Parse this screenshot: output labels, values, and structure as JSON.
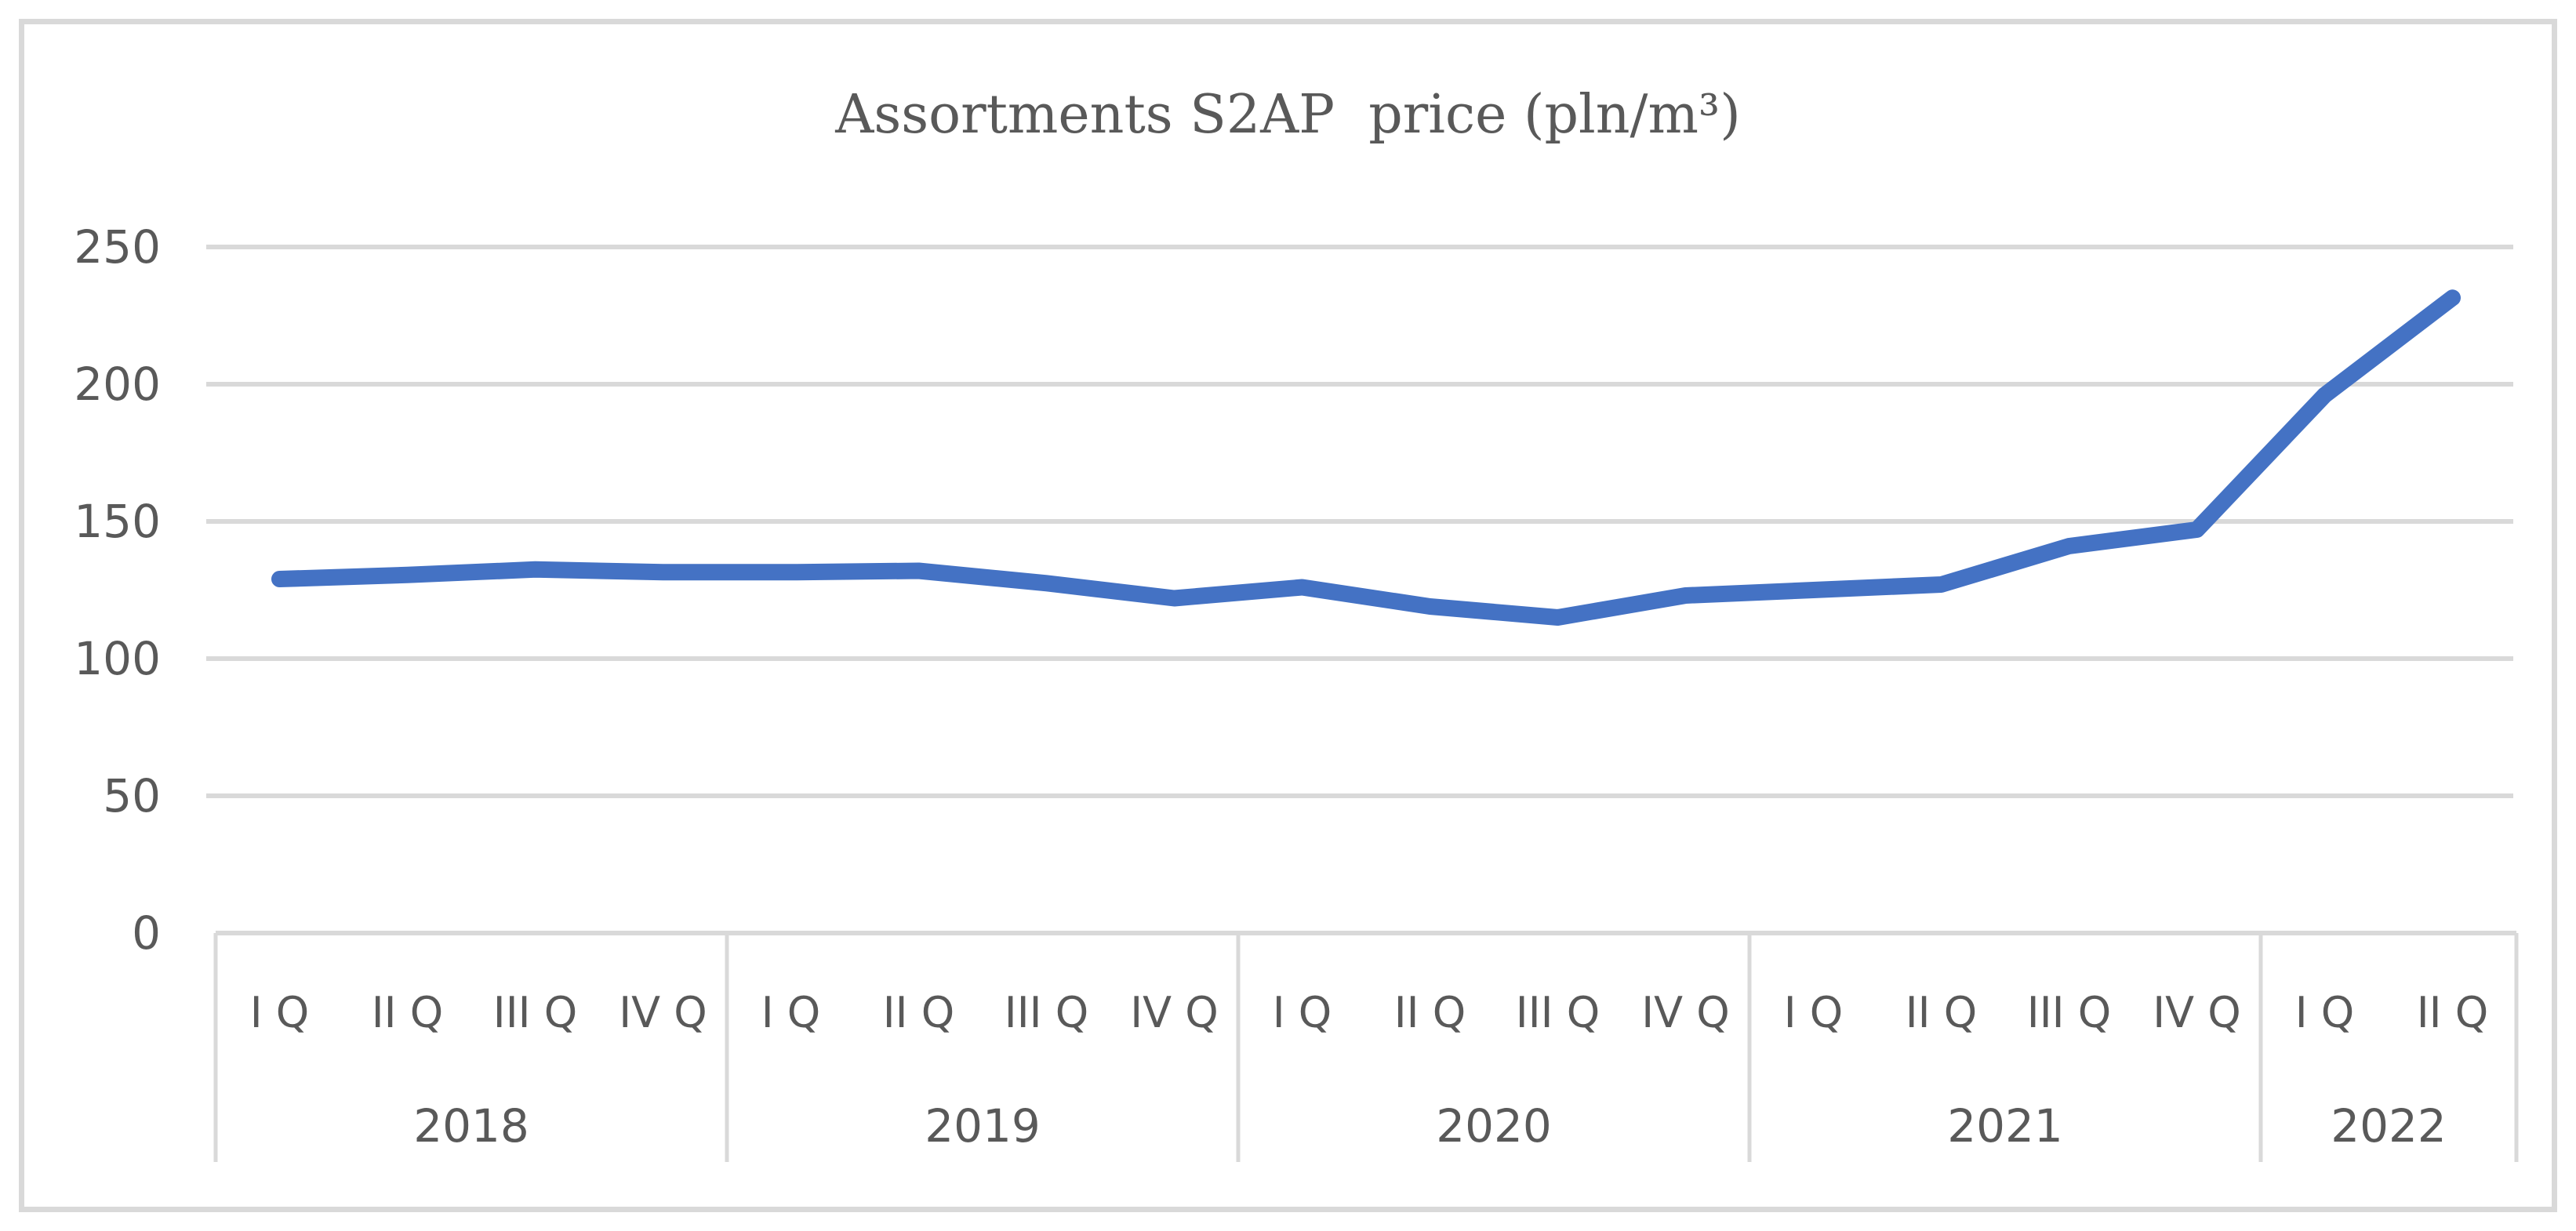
{
  "title": "Assortments S2AP  price (pln/m³)",
  "colors": {
    "series": "#4472C4",
    "grid": "#D9D9D9",
    "border": "#D9D9D9",
    "text": "#595959",
    "background": "#FFFFFF"
  },
  "chart_data": {
    "type": "line",
    "title": "Assortments S2AP  price (pln/m³)",
    "categories": [
      "I Q",
      "II Q",
      "III Q",
      "IV Q",
      "I Q",
      "II Q",
      "III Q",
      "IV Q",
      "I Q",
      "II Q",
      "III Q",
      "IV Q",
      "I Q",
      "II Q",
      "III Q",
      "IV Q",
      "I Q",
      "II Q"
    ],
    "year_groups": [
      {
        "label": "2018",
        "quarters": 4
      },
      {
        "label": "2019",
        "quarters": 4
      },
      {
        "label": "2020",
        "quarters": 4
      },
      {
        "label": "2021",
        "quarters": 4
      },
      {
        "label": "2022",
        "quarters": 2
      }
    ],
    "series": [
      {
        "name": "Assortments S2AP price",
        "values": [
          129,
          130.5,
          132.5,
          131.5,
          131.5,
          132,
          127.5,
          122,
          126,
          119,
          115,
          123,
          125,
          127,
          141,
          147,
          196,
          231.5
        ]
      }
    ],
    "values": [
      129,
      130.5,
      132.5,
      131.5,
      131.5,
      132,
      127.5,
      122,
      126,
      119,
      115,
      123,
      125,
      127,
      141,
      147,
      196,
      231.5
    ],
    "yticks": [
      0,
      50,
      100,
      150,
      200,
      250
    ],
    "ylim": [
      0,
      250
    ],
    "xlabel": "",
    "ylabel": "",
    "grid": true,
    "legend_position": "none",
    "series_color": "#4472C4",
    "grid_color": "#D9D9D9",
    "label_color": "#595959"
  }
}
